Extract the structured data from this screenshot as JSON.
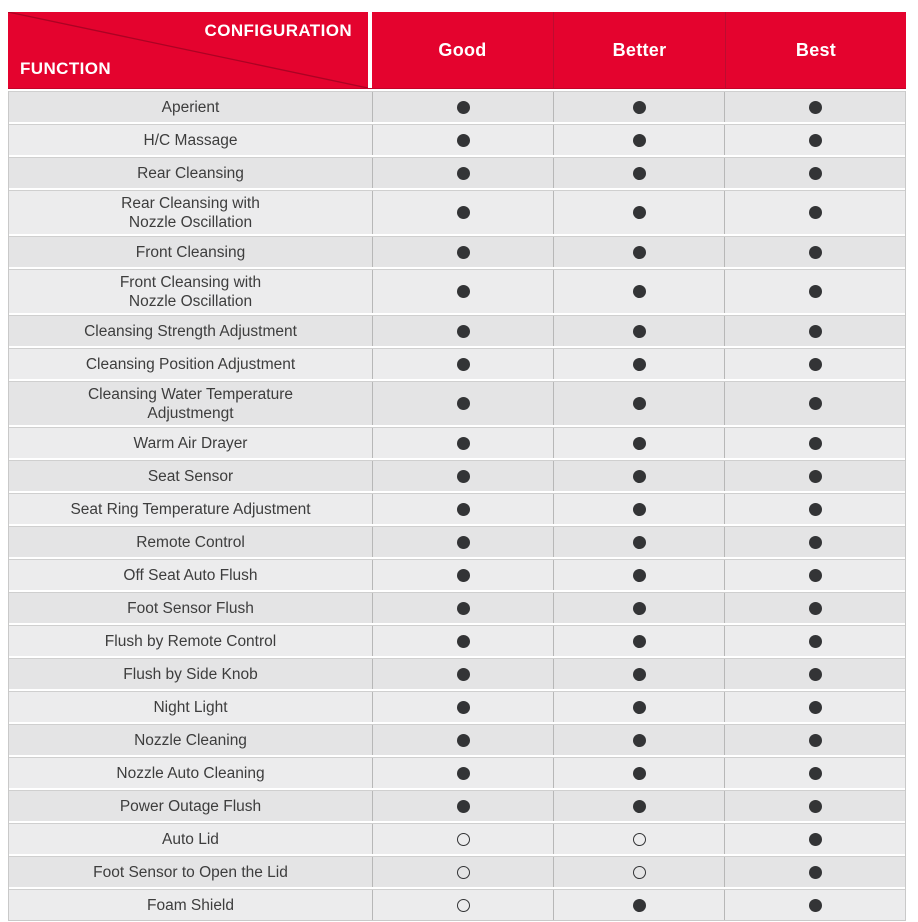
{
  "header": {
    "corner_top": "CONFIGURATION",
    "corner_bottom": "FUNCTION",
    "columns": [
      "Good",
      "Better",
      "Best"
    ]
  },
  "colors": {
    "header_red": "#e4032e",
    "header_divider_red": "#bd0c30",
    "diagonal_line_red": "#ab0323",
    "dot_color": "#333436",
    "row_dark": "#e4e4e5",
    "row_light": "#ececed"
  },
  "symbols": {
    "filled": "●",
    "open": "○"
  },
  "rows": [
    {
      "label": "Aperient",
      "values": [
        "filled",
        "filled",
        "filled"
      ]
    },
    {
      "label": "H/C Massage",
      "values": [
        "filled",
        "filled",
        "filled"
      ]
    },
    {
      "label": "Rear Cleansing",
      "values": [
        "filled",
        "filled",
        "filled"
      ]
    },
    {
      "label": "Rear Cleansing with\nNozzle Oscillation",
      "values": [
        "filled",
        "filled",
        "filled"
      ]
    },
    {
      "label": "Front Cleansing",
      "values": [
        "filled",
        "filled",
        "filled"
      ]
    },
    {
      "label": "Front Cleansing with\nNozzle Oscillation",
      "values": [
        "filled",
        "filled",
        "filled"
      ]
    },
    {
      "label": "Cleansing Strength Adjustment",
      "values": [
        "filled",
        "filled",
        "filled"
      ]
    },
    {
      "label": "Cleansing Position Adjustment",
      "values": [
        "filled",
        "filled",
        "filled"
      ]
    },
    {
      "label": "Cleansing Water Temperature\nAdjustmengt",
      "values": [
        "filled",
        "filled",
        "filled"
      ]
    },
    {
      "label": "Warm Air Drayer",
      "values": [
        "filled",
        "filled",
        "filled"
      ]
    },
    {
      "label": "Seat Sensor",
      "values": [
        "filled",
        "filled",
        "filled"
      ]
    },
    {
      "label": "Seat Ring Temperature Adjustment",
      "values": [
        "filled",
        "filled",
        "filled"
      ]
    },
    {
      "label": "Remote Control",
      "values": [
        "filled",
        "filled",
        "filled"
      ]
    },
    {
      "label": "Off Seat Auto Flush",
      "values": [
        "filled",
        "filled",
        "filled"
      ]
    },
    {
      "label": "Foot Sensor Flush",
      "values": [
        "filled",
        "filled",
        "filled"
      ]
    },
    {
      "label": "Flush by Remote Control",
      "values": [
        "filled",
        "filled",
        "filled"
      ]
    },
    {
      "label": "Flush by Side Knob",
      "values": [
        "filled",
        "filled",
        "filled"
      ]
    },
    {
      "label": "Night Light",
      "values": [
        "filled",
        "filled",
        "filled"
      ]
    },
    {
      "label": "Nozzle Cleaning",
      "values": [
        "filled",
        "filled",
        "filled"
      ]
    },
    {
      "label": "Nozzle Auto Cleaning",
      "values": [
        "filled",
        "filled",
        "filled"
      ]
    },
    {
      "label": "Power Outage Flush",
      "values": [
        "filled",
        "filled",
        "filled"
      ]
    },
    {
      "label": "Auto Lid",
      "values": [
        "open",
        "open",
        "filled"
      ]
    },
    {
      "label": "Foot Sensor to Open the Lid",
      "values": [
        "open",
        "open",
        "filled"
      ]
    },
    {
      "label": "Foam Shield",
      "values": [
        "open",
        "filled",
        "filled"
      ]
    }
  ]
}
